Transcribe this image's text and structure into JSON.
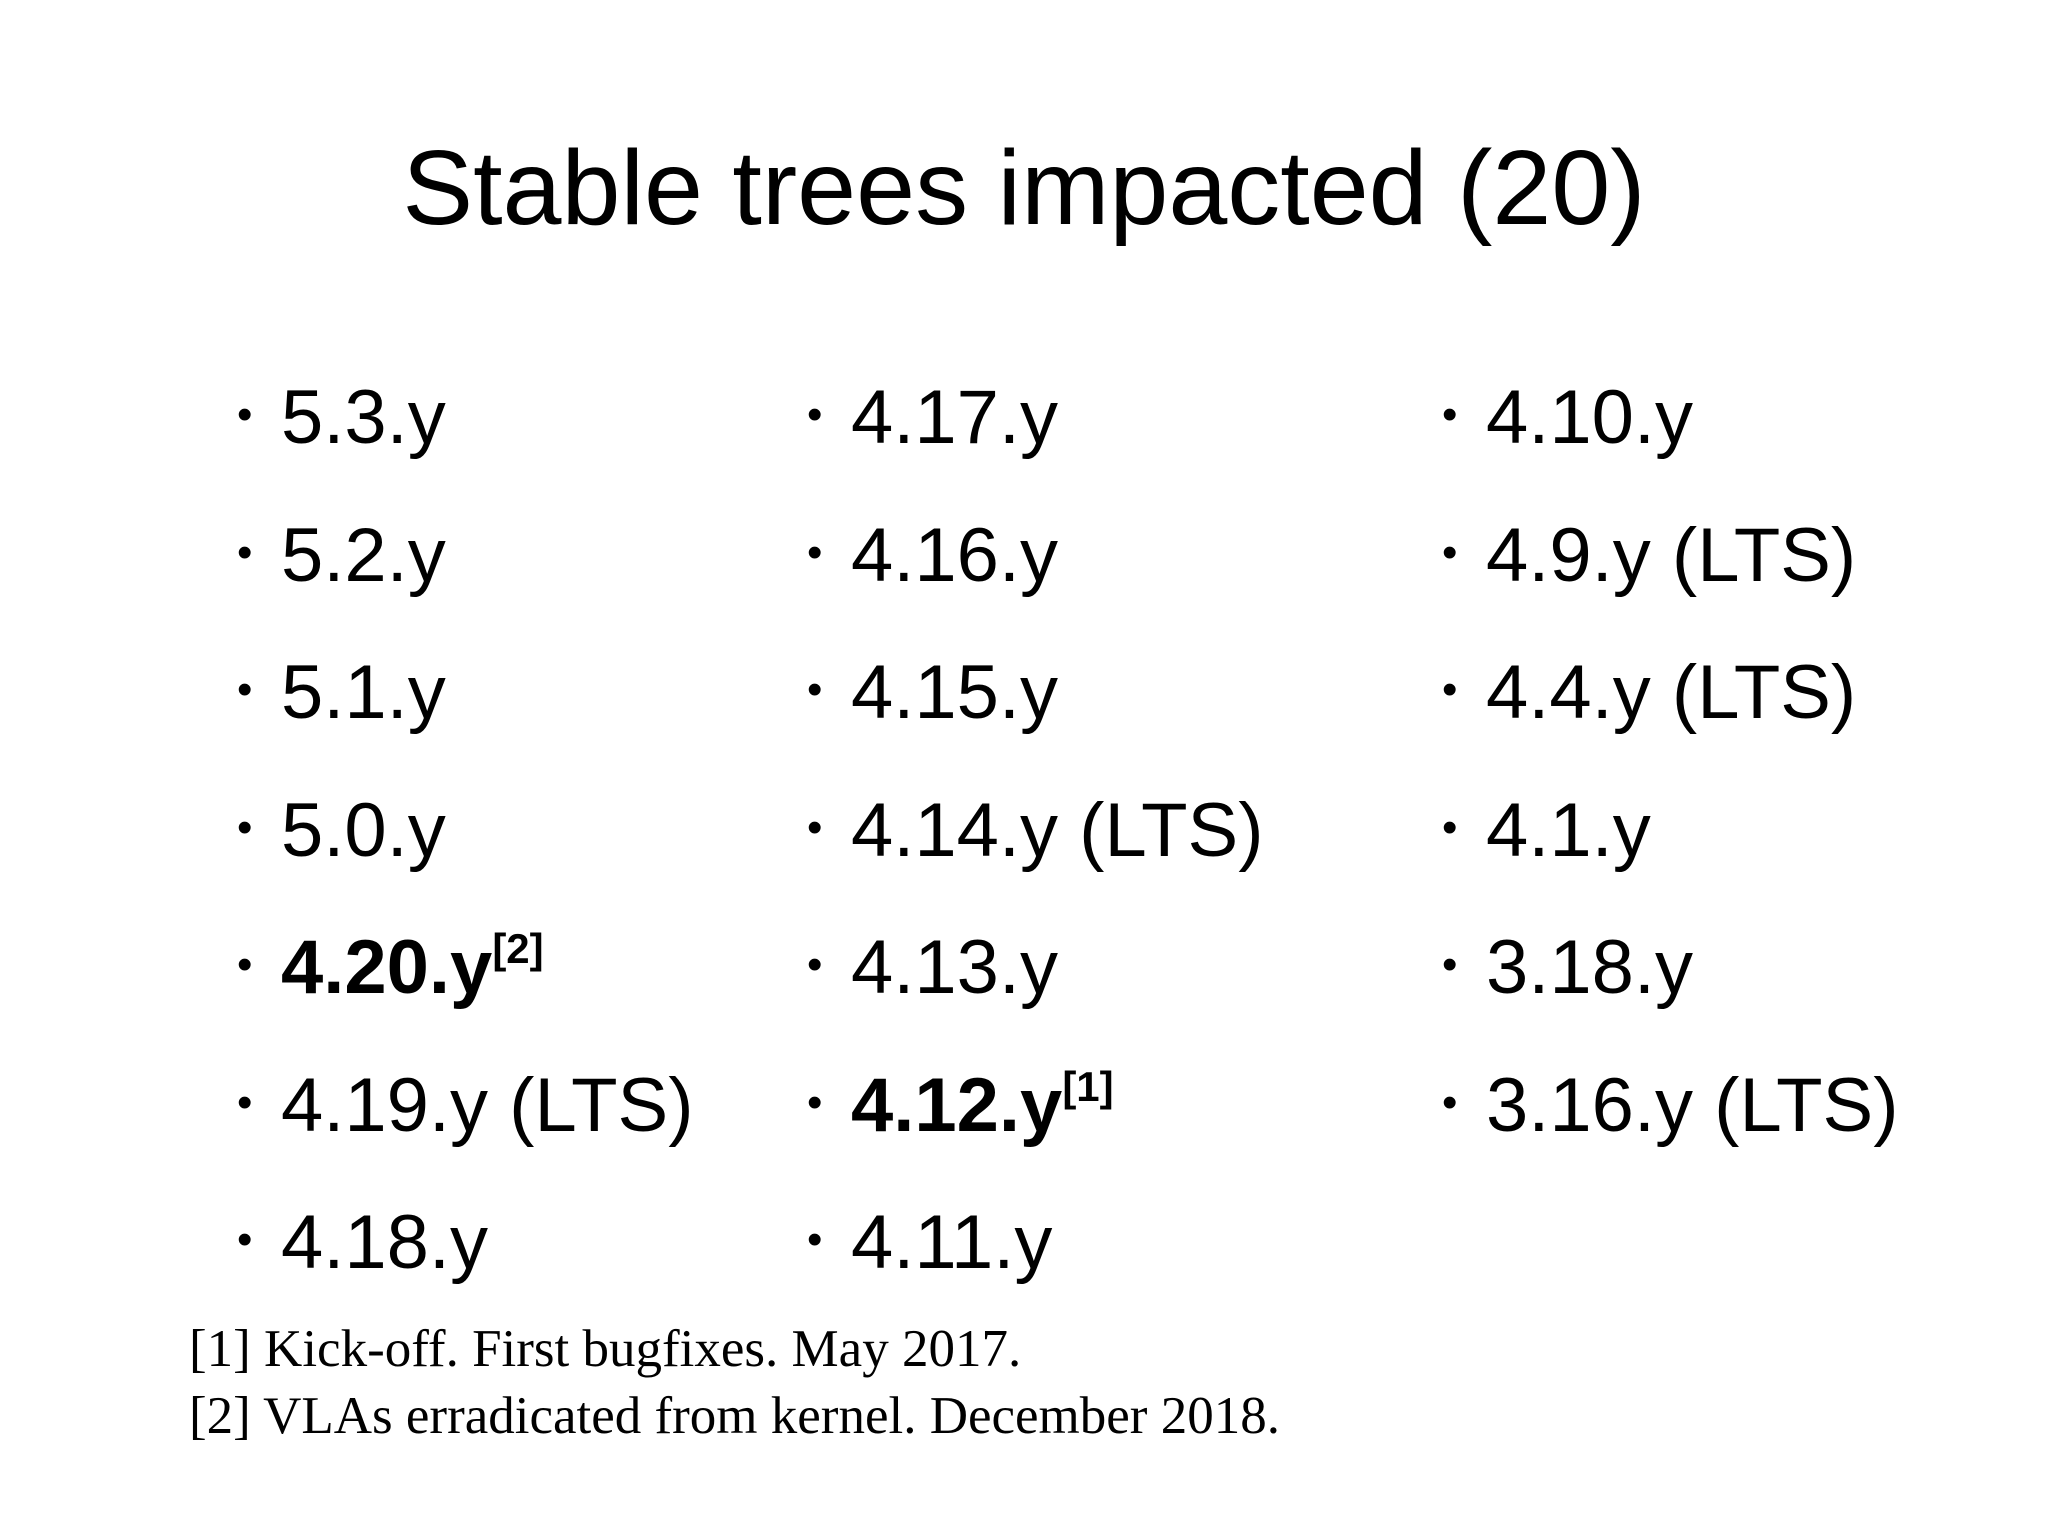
{
  "title": "Stable trees impacted (20)",
  "columns": [
    [
      {
        "label": "5.3.y",
        "note": "",
        "bold": false
      },
      {
        "label": "5.2.y",
        "note": "",
        "bold": false
      },
      {
        "label": "5.1.y",
        "note": "",
        "bold": false
      },
      {
        "label": "5.0.y",
        "note": "",
        "bold": false
      },
      {
        "label": "4.20.y",
        "note": "[2]",
        "bold": true
      },
      {
        "label": "4.19.y (LTS)",
        "note": "",
        "bold": false
      },
      {
        "label": "4.18.y",
        "note": "",
        "bold": false
      }
    ],
    [
      {
        "label": "4.17.y",
        "note": "",
        "bold": false
      },
      {
        "label": "4.16.y",
        "note": "",
        "bold": false
      },
      {
        "label": "4.15.y",
        "note": "",
        "bold": false
      },
      {
        "label": "4.14.y (LTS)",
        "note": "",
        "bold": false
      },
      {
        "label": "4.13.y",
        "note": "",
        "bold": false
      },
      {
        "label": "4.12.y",
        "note": "[1]",
        "bold": true
      },
      {
        "label": "4.11.y",
        "note": "",
        "bold": false
      }
    ],
    [
      {
        "label": "4.10.y",
        "note": "",
        "bold": false
      },
      {
        "label": "4.9.y (LTS)",
        "note": "",
        "bold": false
      },
      {
        "label": "4.4.y (LTS)",
        "note": "",
        "bold": false
      },
      {
        "label": "4.1.y",
        "note": "",
        "bold": false
      },
      {
        "label": "3.18.y",
        "note": "",
        "bold": false
      },
      {
        "label": "3.16.y (LTS)",
        "note": "",
        "bold": false
      }
    ]
  ],
  "footnotes": [
    "[1] Kick-off. First bugfixes. May 2017.",
    "[2] VLAs erradicated from kernel. December 2018."
  ]
}
